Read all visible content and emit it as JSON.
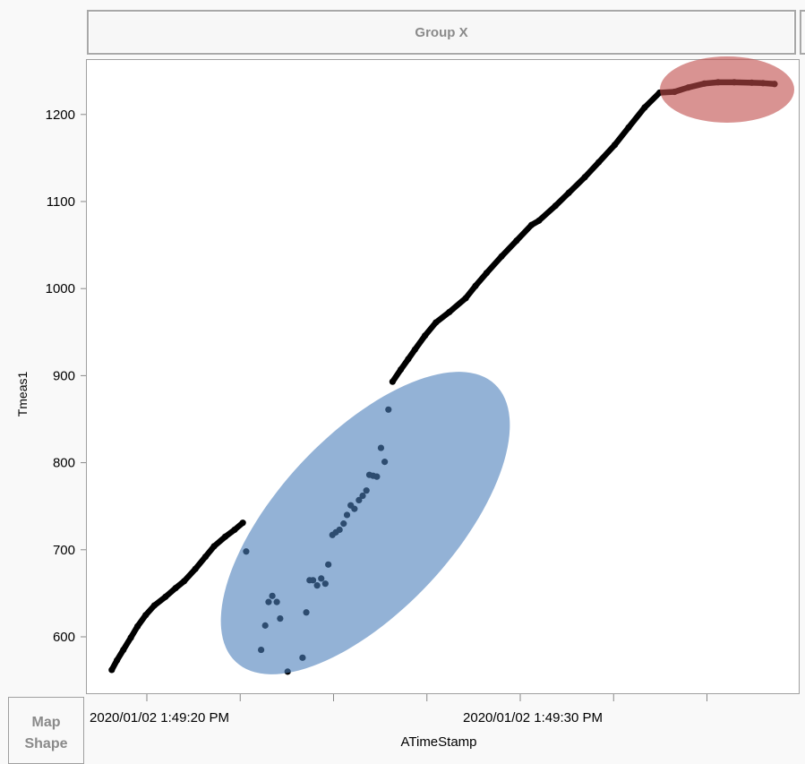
{
  "header": {
    "group_x_label": "Group X"
  },
  "drop_zones": {
    "map_shape_line1": "Map",
    "map_shape_line2": "Shape"
  },
  "chart_data": {
    "type": "scatter",
    "xlabel": "ATimeStamp",
    "ylabel": "Tmeas1",
    "x_date": "2020/01/02",
    "xlim": [
      "1:49:17.6 PM",
      "1:49:37.5 PM"
    ],
    "ylim": [
      543,
      1273
    ],
    "y_ticks": [
      600,
      700,
      800,
      900,
      1000,
      1100,
      1200
    ],
    "x_tick_labels": [
      {
        "time": "1:49:20 PM",
        "label": "2020/01/02 1:49:20 PM"
      },
      {
        "time": "1:49:30 PM",
        "label": "2020/01/02 1:49:30 PM"
      }
    ],
    "x_minor_ticks": [
      "1:49:22.5 PM",
      "1:49:25 PM",
      "1:49:27.5 PM",
      "1:49:32.5 PM",
      "1:49:35 PM"
    ],
    "grid": false,
    "marker_color": "#000000",
    "series": [
      {
        "points": [
          [
            "1:49:19.06 PM",
            562
          ],
          [
            "1:49:19.20 PM",
            573
          ],
          [
            "1:49:19.37 PM",
            585
          ],
          [
            "1:49:19.57 PM",
            599
          ],
          [
            "1:49:19.75 PM",
            612
          ],
          [
            "1:49:19.97 PM",
            625
          ],
          [
            "1:49:20.20 PM",
            636
          ],
          [
            "1:49:20.50 PM",
            646
          ],
          [
            "1:49:20.77 PM",
            656
          ],
          [
            "1:49:21.00 PM",
            664
          ],
          [
            "1:49:21.30 PM",
            678
          ],
          [
            "1:49:21.57 PM",
            692
          ],
          [
            "1:49:21.80 PM",
            704
          ],
          [
            "1:49:22.10 PM",
            715
          ],
          [
            "1:49:22.35 PM",
            723
          ],
          [
            "1:49:22.57 PM",
            731
          ]
        ],
        "connected": true
      },
      {
        "points": [
          [
            "1:49:22.66 PM",
            698
          ],
          [
            "1:49:23.06 PM",
            585
          ],
          [
            "1:49:23.17 PM",
            613
          ],
          [
            "1:49:23.26 PM",
            640
          ],
          [
            "1:49:23.36 PM",
            647
          ],
          [
            "1:49:23.48 PM",
            640
          ],
          [
            "1:49:23.57 PM",
            621
          ],
          [
            "1:49:23.77 PM",
            560
          ],
          [
            "1:49:24.17 PM",
            576
          ],
          [
            "1:49:24.27 PM",
            628
          ],
          [
            "1:49:24.36 PM",
            665
          ],
          [
            "1:49:24.45 PM",
            665
          ],
          [
            "1:49:24.56 PM",
            659
          ],
          [
            "1:49:24.67 PM",
            667
          ],
          [
            "1:49:24.78 PM",
            661
          ],
          [
            "1:49:24.86 PM",
            683
          ],
          [
            "1:49:24.97 PM",
            717
          ],
          [
            "1:49:25.06 PM",
            720
          ],
          [
            "1:49:25.16 PM",
            723
          ],
          [
            "1:49:25.27 PM",
            730
          ],
          [
            "1:49:25.36 PM",
            740
          ],
          [
            "1:49:25.46 PM",
            751
          ],
          [
            "1:49:25.56 PM",
            747
          ],
          [
            "1:49:25.68 PM",
            757
          ],
          [
            "1:49:25.78 PM",
            762
          ],
          [
            "1:49:25.88 PM",
            768
          ],
          [
            "1:49:25.96 PM",
            786
          ],
          [
            "1:49:26.06 PM",
            785
          ],
          [
            "1:49:26.16 PM",
            784
          ],
          [
            "1:49:26.27 PM",
            817
          ],
          [
            "1:49:26.37 PM",
            801
          ],
          [
            "1:49:26.47 PM",
            861
          ]
        ],
        "connected": false
      },
      {
        "points": [
          [
            "1:49:26.58 PM",
            893
          ],
          [
            "1:49:26.80 PM",
            907
          ],
          [
            "1:49:27.00 PM",
            919
          ],
          [
            "1:49:27.18 PM",
            930
          ],
          [
            "1:49:27.45 PM",
            946
          ],
          [
            "1:49:27.74 PM",
            961
          ],
          [
            "1:49:28.10 PM",
            973
          ],
          [
            "1:49:28.54 PM",
            989
          ],
          [
            "1:49:28.80 PM",
            1003
          ],
          [
            "1:49:29.10 PM",
            1018
          ],
          [
            "1:49:29.50 PM",
            1037
          ],
          [
            "1:49:29.90 PM",
            1055
          ],
          [
            "1:49:30.30 PM",
            1073
          ],
          [
            "1:49:30.50 PM",
            1078
          ],
          [
            "1:49:30.94 PM",
            1095
          ],
          [
            "1:49:31.30 PM",
            1110
          ],
          [
            "1:49:31.73 PM",
            1128
          ],
          [
            "1:49:32.10 PM",
            1145
          ],
          [
            "1:49:32.53 PM",
            1165
          ],
          [
            "1:49:32.90 PM",
            1185
          ],
          [
            "1:49:33.33 PM",
            1208
          ],
          [
            "1:49:33.73 PM",
            1225
          ],
          [
            "1:49:34.13 PM",
            1226
          ],
          [
            "1:49:34.50 PM",
            1231
          ],
          [
            "1:49:34.93 PM",
            1235.5
          ],
          [
            "1:49:35.30 PM",
            1237
          ],
          [
            "1:49:35.73 PM",
            1237
          ],
          [
            "1:49:36.20 PM",
            1236.5
          ],
          [
            "1:49:36.50 PM",
            1236
          ],
          [
            "1:49:36.81 PM",
            1235
          ]
        ],
        "connected": true
      }
    ],
    "annotations": [
      {
        "shape": "ellipse",
        "color": "#94b2d6",
        "center": [
          "1:49:25.8 PM",
          772
        ],
        "region": "scattered low readings"
      },
      {
        "shape": "ellipse",
        "color": "#d99392",
        "center": [
          "1:49:35.5 PM",
          1232
        ],
        "region": "plateau"
      }
    ]
  }
}
